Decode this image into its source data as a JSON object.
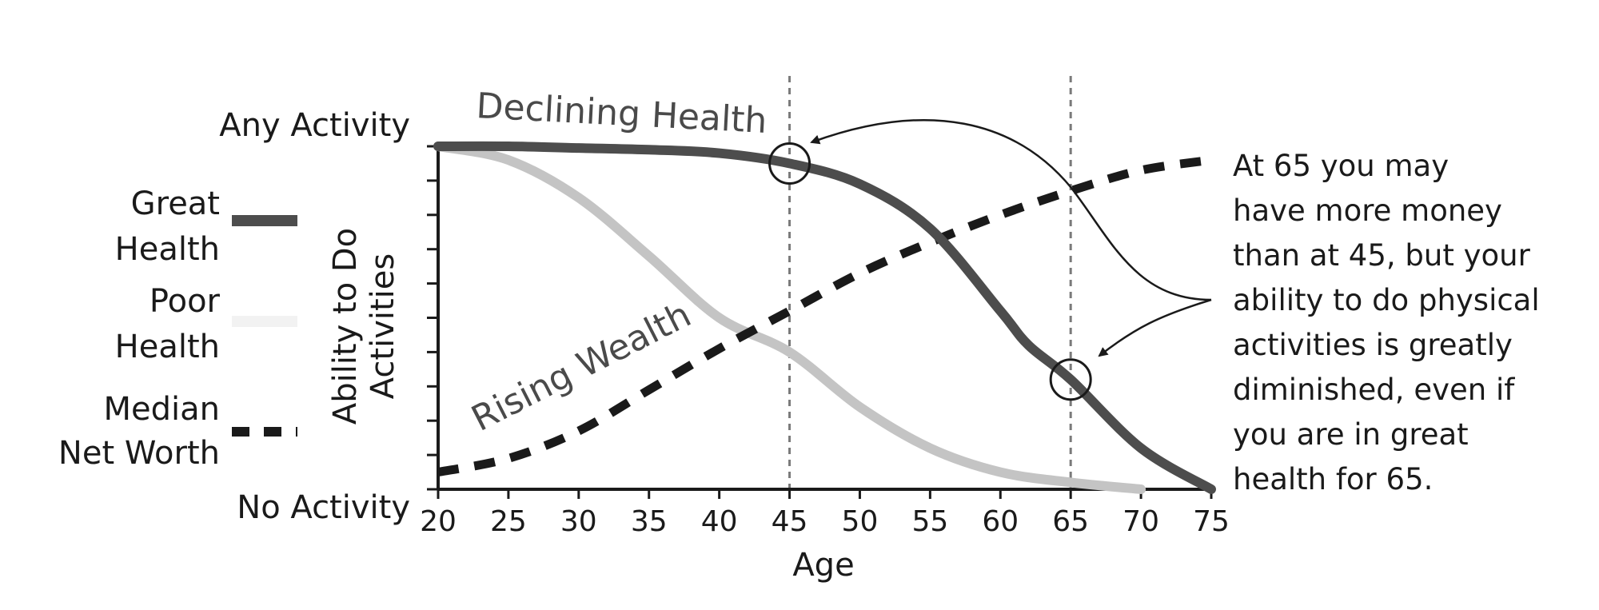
{
  "chart_data": {
    "type": "line",
    "xlabel": "Age",
    "ylabel_lines": [
      "Ability to Do",
      "Activities"
    ],
    "y_top_label": "Any Activity",
    "y_bottom_label": "No Activity",
    "x_ticks": [
      20,
      25,
      30,
      35,
      40,
      45,
      50,
      55,
      60,
      65,
      70,
      75
    ],
    "xlim": [
      20,
      75
    ],
    "ylim": [
      0,
      1
    ],
    "y_tick_count": 10,
    "reference_lines_x": [
      45,
      65
    ],
    "grid": false,
    "series": [
      {
        "name_lines": [
          "Great",
          "Health"
        ],
        "style": "solid",
        "color": "#4d4d4d",
        "x": [
          20,
          25,
          30,
          35,
          40,
          45,
          50,
          55,
          60,
          62,
          65,
          70,
          75
        ],
        "y": [
          1.0,
          1.0,
          0.995,
          0.99,
          0.98,
          0.95,
          0.89,
          0.76,
          0.52,
          0.42,
          0.32,
          0.12,
          0.0
        ]
      },
      {
        "name_lines": [
          "Poor",
          "Health"
        ],
        "style": "solid",
        "color": "#c4c4c4",
        "x": [
          20,
          25,
          30,
          35,
          40,
          45,
          50,
          55,
          60,
          65,
          70
        ],
        "y": [
          1.0,
          0.96,
          0.85,
          0.68,
          0.5,
          0.4,
          0.24,
          0.12,
          0.05,
          0.02,
          0.0
        ]
      },
      {
        "name_lines": [
          "Median",
          "Net Worth"
        ],
        "style": "dashed",
        "color": "#1a1a1a",
        "x": [
          20,
          25,
          30,
          35,
          40,
          45,
          50,
          55,
          60,
          65,
          70,
          75
        ],
        "y": [
          0.05,
          0.09,
          0.17,
          0.29,
          0.41,
          0.52,
          0.63,
          0.72,
          0.8,
          0.87,
          0.93,
          0.96
        ]
      }
    ],
    "markers": [
      {
        "series": 0,
        "x": 45
      },
      {
        "series": 0,
        "x": 65
      }
    ],
    "annotations": {
      "declining": "Declining Health",
      "rising": "Rising Wealth",
      "callout_lines": [
        "At 65 you may",
        "have more money",
        "than at 45, but your",
        "ability to do physical",
        "activities is greatly",
        "diminished, even if",
        "you are in great",
        "health for 65."
      ]
    }
  }
}
